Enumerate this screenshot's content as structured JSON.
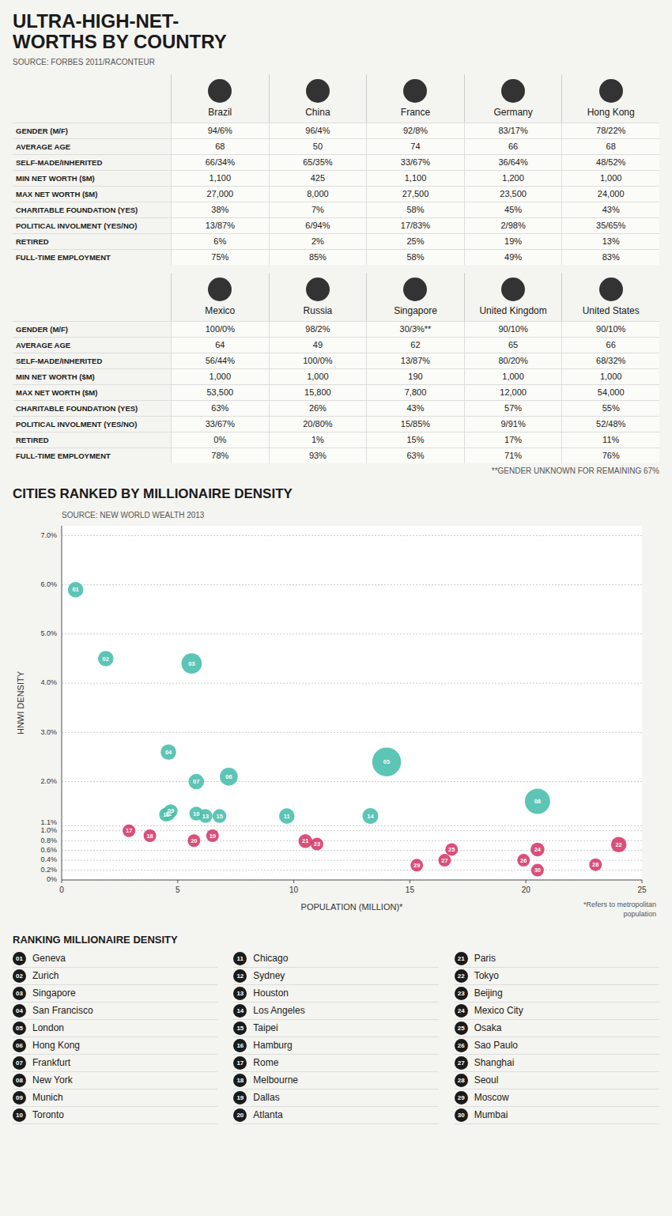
{
  "chart_data": [
    {
      "type": "table",
      "title": "ULTRA-HIGH-NET-\nWORTHS BY COUNTRY",
      "subtitle": "SOURCE: FORBES 2011/RACONTEUR",
      "columns": [
        "Brazil",
        "China",
        "France",
        "Germany",
        "Hong Kong"
      ],
      "rows": [
        [
          "GENDER (M/F)",
          "94/6%",
          "96/4%",
          "92/8%",
          "83/17%",
          "78/22%"
        ],
        [
          "AVERAGE AGE",
          "68",
          "50",
          "74",
          "66",
          "68"
        ],
        [
          "SELF-MADE/INHERITED",
          "66/34%",
          "65/35%",
          "33/67%",
          "36/64%",
          "48/52%"
        ],
        [
          "MIN NET WORTH ($M)",
          "1,100",
          "425",
          "1,100",
          "1,200",
          "1,000"
        ],
        [
          "MAX NET WORTH ($M)",
          "27,000",
          "8,000",
          "27,500",
          "23,500",
          "24,000"
        ],
        [
          "CHARITABLE FOUNDATION (YES)",
          "38%",
          "7%",
          "58%",
          "45%",
          "43%"
        ],
        [
          "POLITICAL INVOLMENT (YES/NO)",
          "13/87%",
          "6/94%",
          "17/83%",
          "2/98%",
          "35/65%"
        ],
        [
          "RETIRED",
          "6%",
          "2%",
          "25%",
          "19%",
          "13%"
        ],
        [
          "FULL-TIME EMPLOYMENT",
          "75%",
          "85%",
          "58%",
          "49%",
          "83%"
        ]
      ]
    },
    {
      "type": "table",
      "columns": [
        "Mexico",
        "Russia",
        "Singapore",
        "United Kingdom",
        "United States"
      ],
      "rows": [
        [
          "GENDER (M/F)",
          "100/0%",
          "98/2%",
          "30/3%**",
          "90/10%",
          "90/10%"
        ],
        [
          "AVERAGE AGE",
          "64",
          "49",
          "62",
          "65",
          "66"
        ],
        [
          "SELF-MADE/INHERITED",
          "56/44%",
          "100/0%",
          "13/87%",
          "80/20%",
          "68/32%"
        ],
        [
          "MIN NET WORTH ($M)",
          "1,000",
          "1,000",
          "190",
          "1,000",
          "1,000"
        ],
        [
          "MAX NET WORTH ($M)",
          "53,500",
          "15,800",
          "7,800",
          "12,000",
          "54,000"
        ],
        [
          "CHARITABLE FOUNDATION (YES)",
          "63%",
          "26%",
          "43%",
          "57%",
          "55%"
        ],
        [
          "POLITICAL INVOLMENT (YES/NO)",
          "33/67%",
          "20/80%",
          "15/85%",
          "9/91%",
          "52/48%"
        ],
        [
          "RETIRED",
          "0%",
          "1%",
          "15%",
          "17%",
          "11%"
        ],
        [
          "FULL-TIME EMPLOYMENT",
          "78%",
          "93%",
          "63%",
          "71%",
          "76%"
        ]
      ],
      "annotation": "**GENDER UNKNOWN FOR REMAINING 67%"
    },
    {
      "type": "scatter",
      "title": "CITIES RANKED BY MILLIONAIRE DENSITY",
      "subtitle": "SOURCE: NEW WORLD WEALTH 2013",
      "x_label": "POPULATION (MILLION)*",
      "y_label": "HNWI DENSITY",
      "annotation": "*Refers to metropolitan\npopulation",
      "x": [
        0.6,
        1.9,
        5.6,
        4.6,
        14.0,
        7.2,
        5.8,
        20.5,
        4.7,
        5.8,
        9.7,
        4.6,
        6.2,
        13.3,
        6.8,
        4.5,
        2.9,
        3.8,
        6.5,
        5.7,
        10.5,
        24.0,
        11.0,
        20.5,
        16.8,
        19.9,
        16.5,
        23.0,
        15.3,
        20.5
      ],
      "values": [
        5.9,
        4.5,
        4.4,
        2.6,
        2.4,
        2.1,
        2.0,
        1.6,
        1.4,
        1.35,
        1.3,
        1.35,
        1.3,
        1.3,
        1.3,
        1.33,
        1.0,
        0.9,
        0.9,
        0.8,
        0.79,
        0.72,
        0.73,
        0.62,
        0.62,
        0.4,
        0.4,
        0.31,
        0.3,
        0.2
      ],
      "sizes": [
        150,
        150,
        260,
        150,
        520,
        200,
        150,
        400,
        120,
        120,
        150,
        120,
        120,
        160,
        120,
        120,
        100,
        100,
        100,
        100,
        120,
        150,
        100,
        120,
        100,
        100,
        100,
        100,
        100,
        100
      ],
      "colors": [
        "#4bbfad",
        "#4bbfad",
        "#4bbfad",
        "#4bbfad",
        "#4bbfad",
        "#4bbfad",
        "#4bbfad",
        "#4bbfad",
        "#4bbfad",
        "#4bbfad",
        "#4bbfad",
        "#4bbfad",
        "#4bbfad",
        "#4bbfad",
        "#4bbfad",
        "#4bbfad",
        "#d63c6b",
        "#d63c6b",
        "#d63c6b",
        "#d63c6b",
        "#d63c6b",
        "#d63c6b",
        "#d63c6b",
        "#d63c6b",
        "#d63c6b",
        "#d63c6b",
        "#d63c6b",
        "#d63c6b",
        "#d63c6b",
        "#d63c6b"
      ],
      "labels": [
        "01",
        "02",
        "03",
        "04",
        "05",
        "06",
        "07",
        "08",
        "09",
        "10",
        "11",
        "12",
        "13",
        "14",
        "15",
        "16",
        "17",
        "18",
        "19",
        "20",
        "21",
        "22",
        "23",
        "24",
        "25",
        "26",
        "27",
        "28",
        "29",
        "30"
      ],
      "xlim": [
        0,
        25
      ],
      "ylim": [
        0,
        7.2
      ],
      "xticks": [
        0,
        5,
        10,
        15,
        20,
        25
      ],
      "yticks": [
        {
          "value": 0,
          "label": "0%"
        },
        {
          "value": 0.2,
          "label": "0.2%"
        },
        {
          "value": 0.4,
          "label": "0.4%"
        },
        {
          "value": 0.6,
          "label": "0.6%"
        },
        {
          "value": 0.8,
          "label": "0.8%"
        },
        {
          "value": 1.0,
          "label": "1.0%"
        },
        {
          "value": 1.1,
          "label": "1.1%"
        },
        {
          "value": 2.0,
          "label": "2.0%"
        },
        {
          "value": 3.0,
          "label": "3.0%"
        },
        {
          "value": 4.0,
          "label": "4.0%"
        },
        {
          "value": 5.0,
          "label": "5.0%"
        },
        {
          "value": 6.0,
          "label": "6.0%"
        },
        {
          "value": 7.0,
          "label": "7.0%"
        }
      ],
      "grid": true
    },
    {
      "type": "ranking",
      "title": "RANKING MILLIONAIRE DENSITY",
      "labels": [
        "01",
        "02",
        "03",
        "04",
        "05",
        "06",
        "07",
        "08",
        "09",
        "10",
        "11",
        "12",
        "13",
        "14",
        "15",
        "16",
        "17",
        "18",
        "19",
        "20",
        "21",
        "22",
        "23",
        "24",
        "25",
        "26",
        "27",
        "28",
        "29",
        "30"
      ],
      "categories": [
        "Geneva",
        "Zurich",
        "Singapore",
        "San Francisco",
        "London",
        "Hong Kong",
        "Frankfurt",
        "New York",
        "Munich",
        "Toronto",
        "Chicago",
        "Sydney",
        "Houston",
        "Los Angeles",
        "Taipei",
        "Hamburg",
        "Rome",
        "Melbourne",
        "Dallas",
        "Atlanta",
        "Paris",
        "Tokyo",
        "Beijing",
        "Mexico City",
        "Osaka",
        "Sao Paulo",
        "Shanghai",
        "Seoul",
        "Moscow",
        "Mumbai"
      ]
    }
  ]
}
